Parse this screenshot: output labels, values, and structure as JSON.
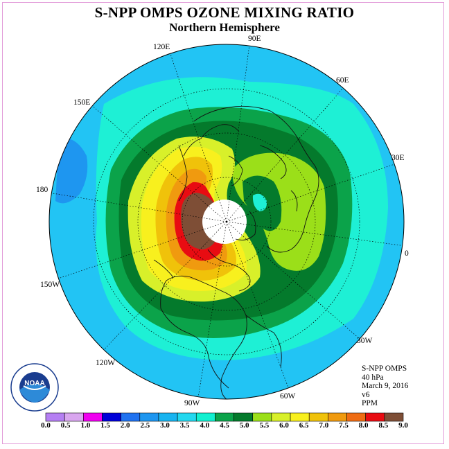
{
  "title": "S-NPP OMPS OZONE MIXING RATIO",
  "subtitle": "Northern Hemisphere",
  "longitude_labels": [
    "90E",
    "60E",
    "30E",
    "0",
    "30W",
    "60W",
    "90W",
    "120W",
    "150W",
    "180",
    "150E",
    "120E"
  ],
  "info": {
    "instrument": "S-NPP OMPS",
    "level": "40 hPa",
    "date": "March 9, 2016",
    "version": "v6",
    "units": "PPM"
  },
  "logo_text": "NOAA",
  "colorbar": {
    "ticks": [
      "0.0",
      "0.5",
      "1.0",
      "1.5",
      "2.0",
      "2.5",
      "3.0",
      "3.5",
      "4.0",
      "4.5",
      "5.0",
      "5.5",
      "6.0",
      "6.5",
      "7.0",
      "7.5",
      "8.0",
      "8.5",
      "9.0"
    ],
    "colors": [
      "#b57ff3",
      "#d9a6ef",
      "#f000f0",
      "#0000d8",
      "#2072f0",
      "#1e96f0",
      "#18b4f0",
      "#23d8ef",
      "#11f0d0",
      "#0ba34a",
      "#047a2c",
      "#9bdf19",
      "#d8f02a",
      "#f8f01e",
      "#f0c20a",
      "#f09a0f",
      "#ef6c13",
      "#e80c12",
      "#7e4e36"
    ]
  },
  "map_colors": {
    "ocean": "#22c4f4",
    "deep_blue": "#1e96f0",
    "cyan": "#1ef0d5",
    "green": "#0ba34a",
    "dark_green": "#047a2c",
    "light_green": "#9bdf19",
    "yellow_green": "#d8f02a",
    "yellow": "#f8f01e",
    "gold": "#f0c20a",
    "orange": "#f09a0f",
    "red": "#e80c12",
    "brown": "#7e4e36",
    "polar_cap": "#ffffff"
  }
}
